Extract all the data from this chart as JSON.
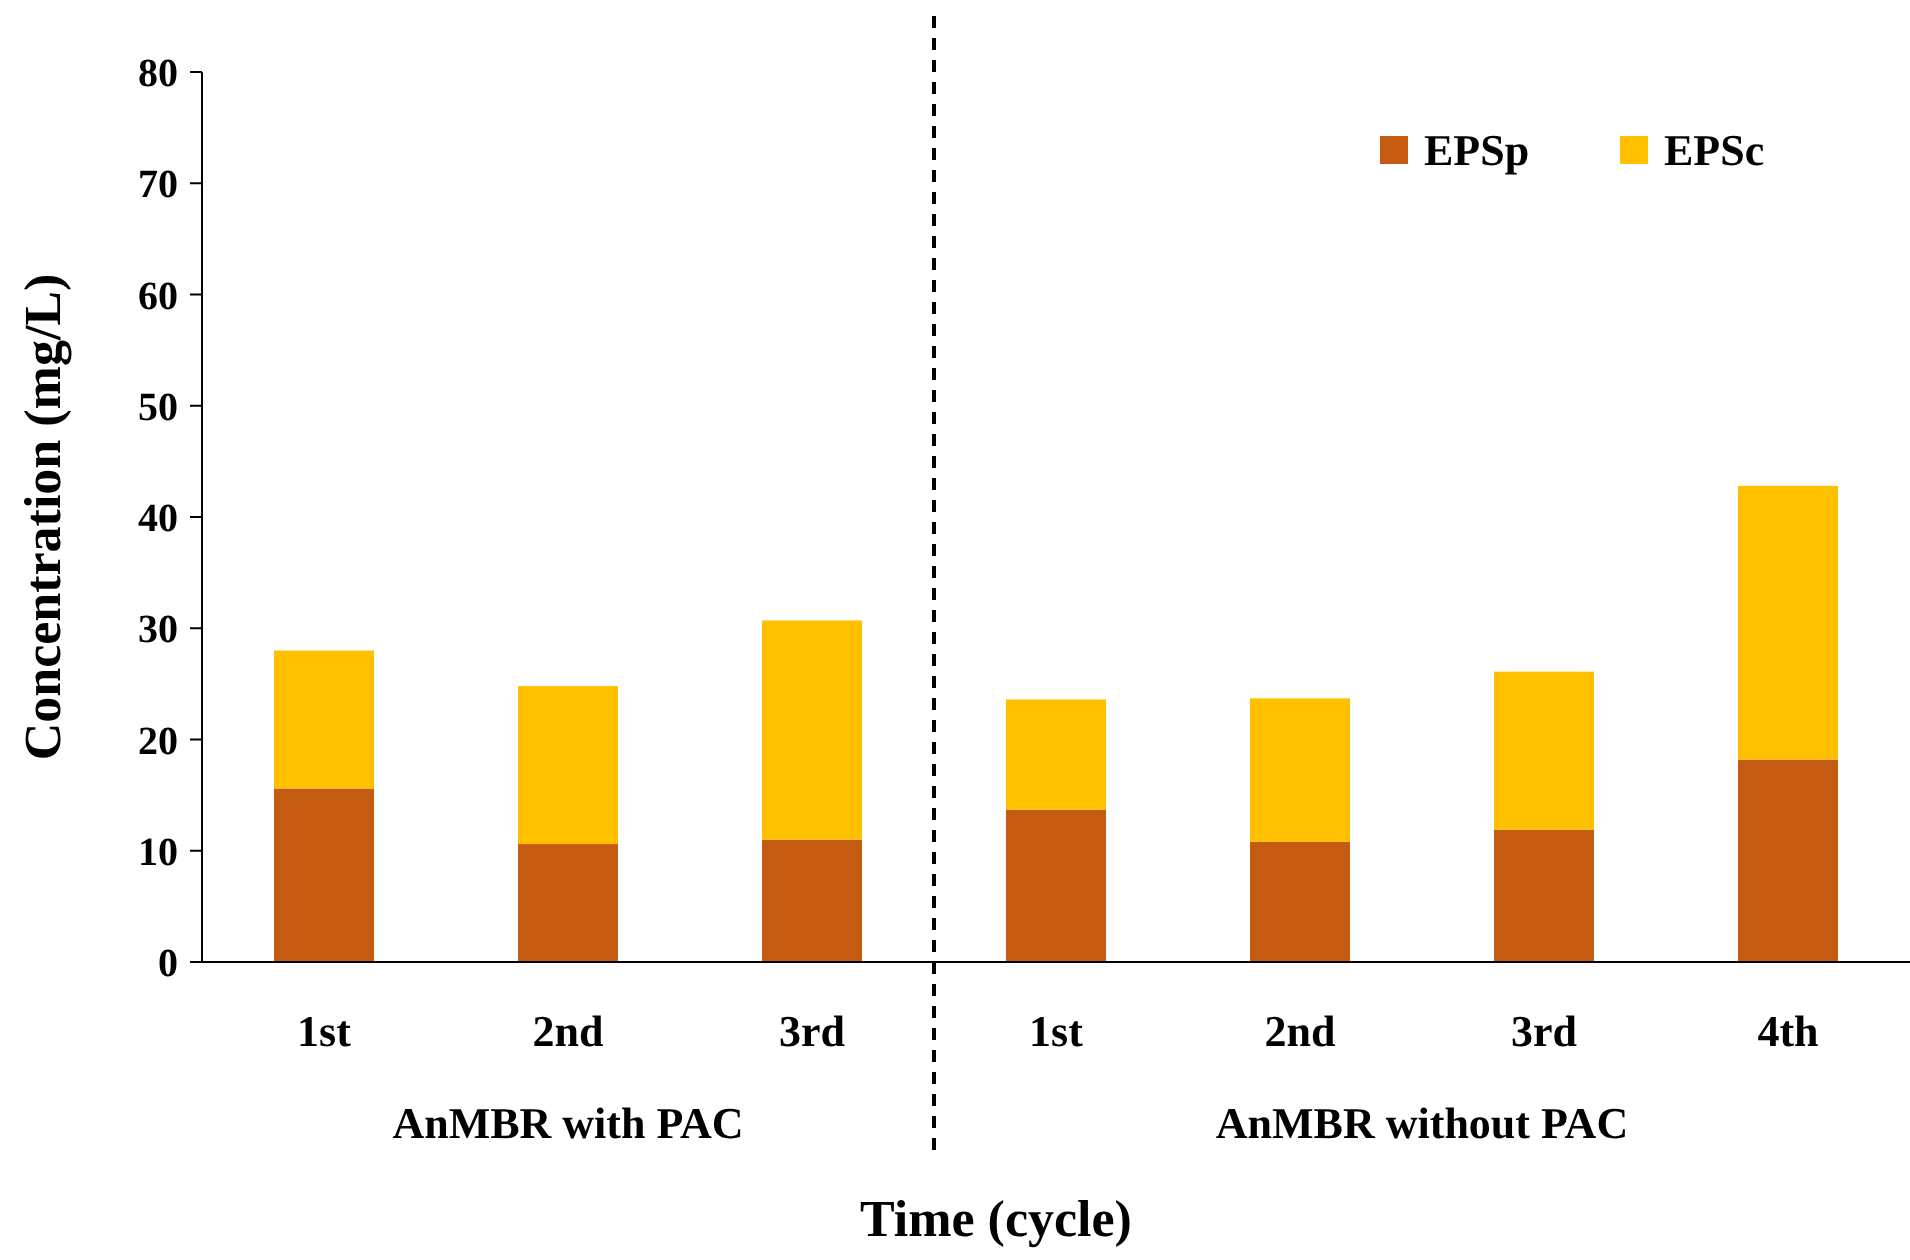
{
  "chart_data": {
    "type": "bar",
    "stacked": true,
    "xlabel": "Time (cycle)",
    "ylabel": "Concentration (mg/L)",
    "categories": [
      "1st",
      "2nd",
      "3rd",
      "1st",
      "2nd",
      "3rd",
      "4th"
    ],
    "series": [
      {
        "name": "EPSp",
        "color": "#c55a11",
        "values": [
          15.6,
          10.6,
          11.0,
          13.7,
          10.8,
          11.9,
          18.2
        ]
      },
      {
        "name": "EPSc",
        "color": "#ffc000",
        "values": [
          12.4,
          14.2,
          19.7,
          9.9,
          12.9,
          14.2,
          24.6
        ]
      }
    ],
    "ylim": [
      0,
      80
    ],
    "yticks": [
      0,
      10,
      20,
      30,
      40,
      50,
      60,
      70,
      80
    ],
    "grid": false,
    "legend": "top right",
    "annotations": [
      "AnMBR with PAC",
      "AnMBR without PAC"
    ]
  }
}
